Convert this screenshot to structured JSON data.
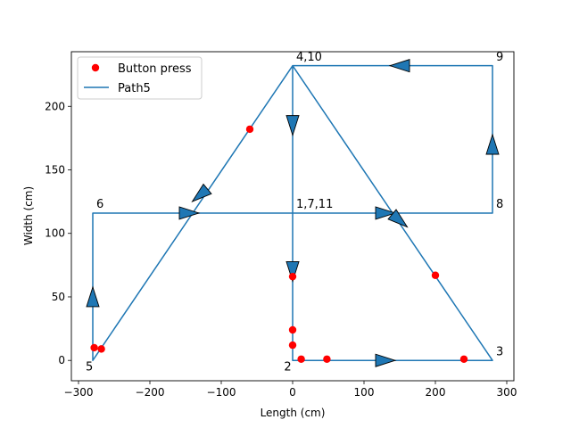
{
  "chart_data": {
    "type": "line",
    "xlabel": "Length (cm)",
    "ylabel": "Width (cm)",
    "xlim": [
      -310,
      310
    ],
    "ylim": [
      -16,
      243
    ],
    "x_ticks": [
      -300,
      -200,
      -100,
      0,
      100,
      200,
      300
    ],
    "x_tick_labels": [
      "−300",
      "−200",
      "−100",
      "0",
      "100",
      "200",
      "300"
    ],
    "y_ticks": [
      0,
      50,
      100,
      150,
      200
    ],
    "y_tick_labels": [
      "0",
      "50",
      "100",
      "150",
      "200"
    ],
    "grid": false,
    "legend_position": "upper-left",
    "colors": {
      "path": "#1f77b4",
      "points": "#ff0000"
    },
    "series": [
      {
        "name": "Button press",
        "kind": "scatter",
        "x": [
          -278,
          -268,
          -60,
          0,
          0,
          0,
          12,
          48,
          200,
          240
        ],
        "y": [
          10,
          9,
          182,
          66,
          24,
          12,
          1,
          1,
          67,
          1
        ]
      },
      {
        "name": "Path5",
        "kind": "line",
        "x": [
          0,
          0,
          280,
          0,
          -280,
          -280,
          280,
          280,
          0,
          0
        ],
        "y": [
          116,
          0,
          0,
          232,
          0,
          116,
          116,
          232,
          232,
          0
        ]
      }
    ],
    "arrows": [
      {
        "x": 130,
        "y": 0,
        "dir": "right"
      },
      {
        "x": 280,
        "y": 170,
        "dir": "up"
      },
      {
        "x": 150,
        "y": 232,
        "dir": "left"
      },
      {
        "x": 0,
        "y": 185,
        "dir": "down"
      },
      {
        "x": 0,
        "y": 70,
        "dir": "down"
      },
      {
        "x": -280,
        "y": 50,
        "dir": "up"
      },
      {
        "x": -145,
        "y": 116,
        "dir": "right"
      },
      {
        "x": 130,
        "y": 116,
        "dir": "right"
      },
      {
        "x": -130,
        "y": 130,
        "dir": "down-left"
      },
      {
        "x": 150,
        "y": 110,
        "dir": "down-right"
      }
    ],
    "annotations": [
      {
        "text": "4,10",
        "x": 5,
        "y": 236
      },
      {
        "text": "9",
        "x": 285,
        "y": 236
      },
      {
        "text": "8",
        "x": 285,
        "y": 120
      },
      {
        "text": "6",
        "x": -275,
        "y": 120
      },
      {
        "text": "1,7,11",
        "x": 5,
        "y": 120
      },
      {
        "text": "5",
        "x": -290,
        "y": -8
      },
      {
        "text": "2",
        "x": -12,
        "y": -8
      },
      {
        "text": "3",
        "x": 285,
        "y": 4
      }
    ]
  }
}
